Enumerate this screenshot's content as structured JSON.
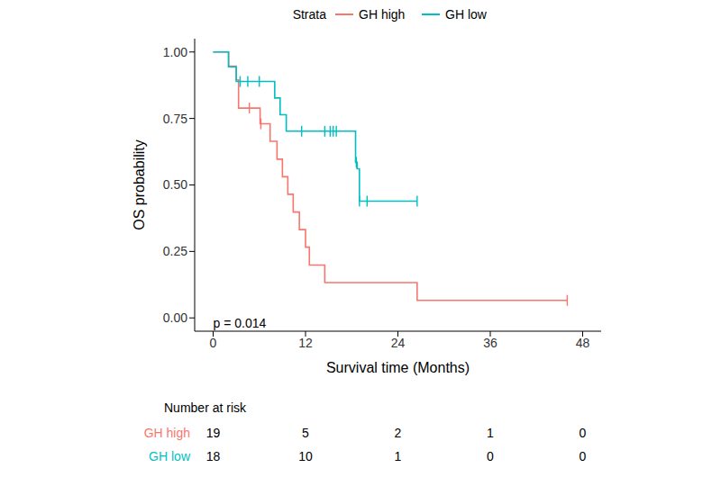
{
  "chart_data": {
    "type": "line",
    "x_label": "Survival time (Months)",
    "y_label": "OS probability",
    "legend_title": "Strata",
    "legend": "top",
    "annotation": "p = 0.014",
    "xlim": [
      -2.4,
      50.4
    ],
    "xticks": [
      0,
      12,
      24,
      36,
      48
    ],
    "ylim": [
      -0.05,
      1.05
    ],
    "yticks": [
      {
        "value": 0,
        "label": "0.00"
      },
      {
        "value": 0.25,
        "label": "0.25"
      },
      {
        "value": 0.5,
        "label": "0.50"
      },
      {
        "value": 0.75,
        "label": "0.75"
      },
      {
        "value": 1,
        "label": "1.00"
      }
    ],
    "line_style": "step",
    "series": [
      {
        "name": "GH high",
        "color": "#F8766D",
        "x": [
          0,
          2,
          3,
          3.3,
          6.1,
          7.4,
          8.3,
          9,
          9.7,
          10.4,
          11.2,
          12,
          12.5,
          14.5,
          26.5,
          46
        ],
        "values": [
          1,
          0.947,
          0.895,
          0.789,
          0.73,
          0.664,
          0.597,
          0.531,
          0.465,
          0.398,
          0.332,
          0.266,
          0.199,
          0.133,
          0.066,
          0.066
        ],
        "censor_x": [
          4.7,
          6.2,
          46
        ],
        "censor_values": [
          0.789,
          0.73,
          0.066
        ]
      },
      {
        "name": "GH low",
        "color": "#00BFC4",
        "x": [
          0,
          2,
          3,
          8,
          8.7,
          9.5,
          18.5,
          18.7,
          19,
          26.5
        ],
        "values": [
          1,
          0.944,
          0.889,
          0.827,
          0.764,
          0.702,
          0.585,
          0.561,
          0.439,
          0.439
        ],
        "censor_x": [
          3.5,
          4.5,
          6,
          11.5,
          14.5,
          15.2,
          15.6,
          16,
          18.6,
          19,
          20,
          26.5
        ],
        "censor_values": [
          0.889,
          0.889,
          0.889,
          0.702,
          0.702,
          0.702,
          0.702,
          0.702,
          0.585,
          0.439,
          0.439,
          0.439
        ]
      }
    ],
    "risk_table": {
      "title": "Number at risk",
      "times": [
        0,
        12,
        24,
        36,
        48
      ],
      "rows": [
        {
          "name": "GH high",
          "color": "#F8766D",
          "values": [
            19,
            5,
            2,
            1,
            0
          ]
        },
        {
          "name": "GH low",
          "color": "#00BFC4",
          "values": [
            18,
            10,
            1,
            0,
            0
          ]
        }
      ]
    }
  }
}
